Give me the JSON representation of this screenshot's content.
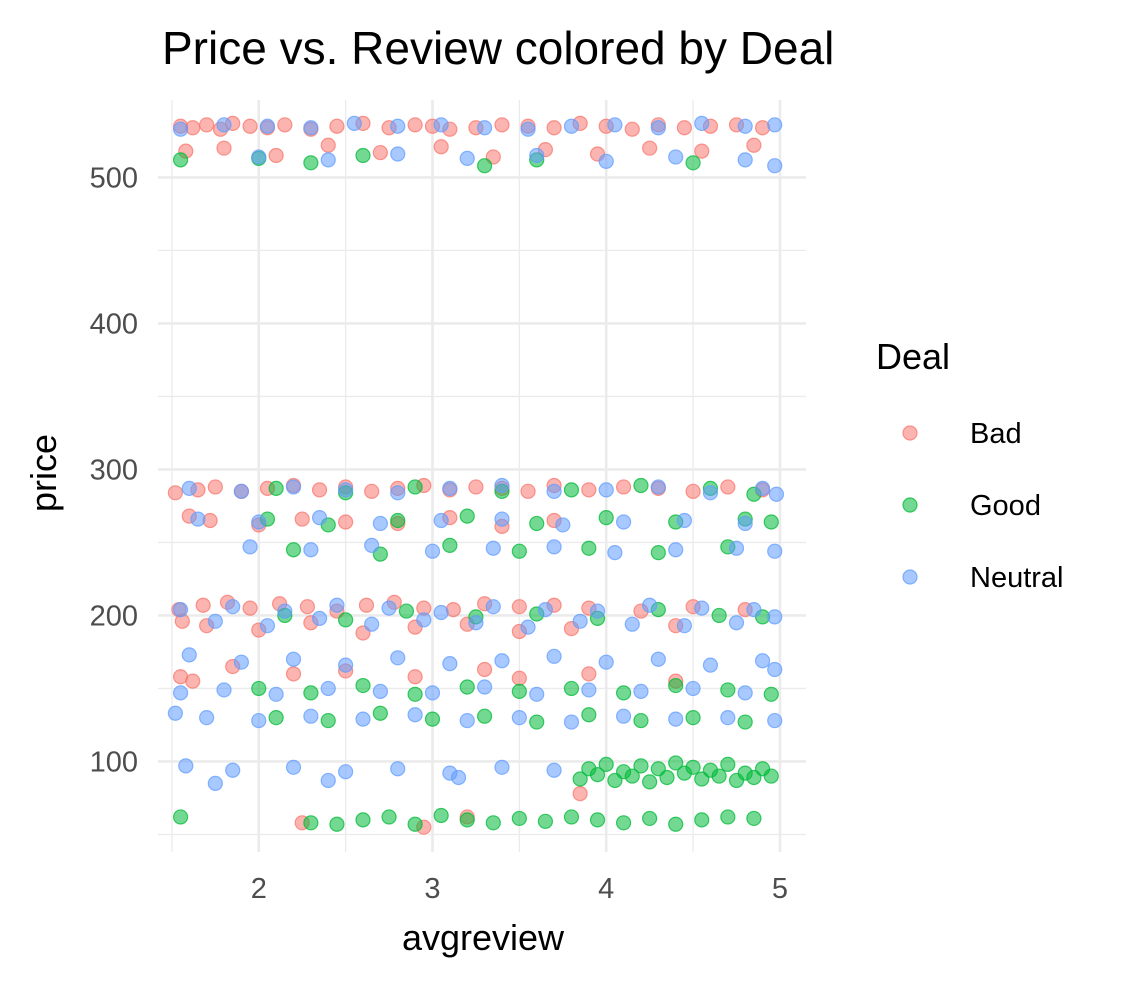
{
  "chart_data": {
    "type": "scatter",
    "title": "Price vs. Review colored by Deal",
    "xlabel": "avgreview",
    "ylabel": "price",
    "xlim": [
      1.42,
      5.15
    ],
    "ylim": [
      38,
      553
    ],
    "x_ticks": [
      2,
      3,
      4,
      5
    ],
    "y_ticks": [
      100,
      200,
      300,
      400,
      500
    ],
    "grid": true,
    "legend": {
      "title": "Deal",
      "position": "right"
    },
    "colors": {
      "Bad": "#F8766D",
      "Good": "#00BA38",
      "Neutral": "#619CFF"
    },
    "series": [
      {
        "name": "Bad",
        "color": "#F8766D",
        "x": [
          1.55,
          1.62,
          1.7,
          1.78,
          1.85,
          1.95,
          2.05,
          2.15,
          2.3,
          2.45,
          2.6,
          2.75,
          2.9,
          3.0,
          3.1,
          3.25,
          3.4,
          3.55,
          3.7,
          3.85,
          4.0,
          4.15,
          4.3,
          4.45,
          4.6,
          4.75,
          4.9,
          1.58,
          1.8,
          2.1,
          2.4,
          2.7,
          3.05,
          3.35,
          3.65,
          3.95,
          4.25,
          4.55,
          4.85,
          1.52,
          1.65,
          1.75,
          1.9,
          2.05,
          2.2,
          2.35,
          2.5,
          2.65,
          2.8,
          2.95,
          3.1,
          3.25,
          3.4,
          3.55,
          3.7,
          3.9,
          4.1,
          4.3,
          4.5,
          4.7,
          4.9,
          1.6,
          1.72,
          2.0,
          2.25,
          2.5,
          2.8,
          3.1,
          3.4,
          3.7,
          1.54,
          1.68,
          1.82,
          1.95,
          2.12,
          2.28,
          2.45,
          2.62,
          2.78,
          2.95,
          3.12,
          3.3,
          3.5,
          3.7,
          3.9,
          4.2,
          4.5,
          4.8,
          1.56,
          1.7,
          2.0,
          2.3,
          2.6,
          2.9,
          3.2,
          3.5,
          3.8,
          4.4,
          1.55,
          1.62,
          1.85,
          2.2,
          2.5,
          2.9,
          3.3,
          3.5,
          3.9,
          4.4,
          2.25,
          2.95,
          3.2,
          3.85
        ],
        "y": [
          535,
          534,
          536,
          533,
          537,
          535,
          534,
          536,
          533,
          535,
          537,
          534,
          536,
          535,
          533,
          534,
          536,
          535,
          534,
          537,
          535,
          533,
          536,
          534,
          535,
          536,
          534,
          518,
          520,
          515,
          522,
          517,
          521,
          514,
          519,
          516,
          520,
          518,
          522,
          284,
          286,
          288,
          285,
          287,
          289,
          286,
          288,
          285,
          287,
          289,
          286,
          288,
          287,
          285,
          289,
          286,
          288,
          287,
          285,
          288,
          286,
          268,
          265,
          262,
          266,
          264,
          263,
          267,
          261,
          265,
          204,
          207,
          209,
          205,
          208,
          206,
          203,
          207,
          209,
          205,
          204,
          208,
          206,
          207,
          205,
          203,
          206,
          204,
          196,
          193,
          190,
          195,
          188,
          192,
          194,
          189,
          191,
          193,
          158,
          155,
          165,
          160,
          162,
          158,
          163,
          157,
          160,
          155,
          58,
          55,
          62,
          78
        ]
      },
      {
        "name": "Good",
        "color": "#00BA38",
        "x": [
          1.55,
          2.0,
          2.3,
          2.6,
          3.3,
          3.6,
          4.5,
          2.1,
          2.5,
          2.9,
          3.4,
          3.8,
          4.2,
          4.6,
          4.85,
          2.05,
          2.4,
          2.8,
          3.2,
          3.6,
          4.0,
          4.4,
          4.8,
          4.95,
          2.2,
          2.7,
          3.1,
          3.5,
          3.9,
          4.3,
          4.7,
          2.15,
          2.5,
          2.85,
          3.25,
          3.6,
          3.95,
          4.3,
          4.65,
          4.9,
          2.0,
          2.3,
          2.6,
          2.9,
          3.2,
          3.5,
          3.8,
          4.1,
          4.4,
          4.7,
          4.95,
          2.1,
          2.4,
          2.7,
          3.0,
          3.3,
          3.6,
          3.9,
          4.2,
          4.5,
          4.8,
          1.55,
          2.3,
          2.45,
          2.6,
          2.75,
          2.9,
          3.05,
          3.2,
          3.35,
          3.5,
          3.65,
          3.8,
          3.95,
          4.1,
          4.25,
          4.4,
          4.55,
          4.7,
          4.85,
          3.9,
          4.0,
          4.1,
          4.2,
          4.3,
          4.4,
          4.5,
          4.6,
          4.7,
          4.8,
          4.9,
          4.95,
          3.85,
          3.95,
          4.05,
          4.15,
          4.25,
          4.35,
          4.45,
          4.55,
          4.65,
          4.75,
          4.85
        ],
        "y": [
          512,
          513,
          510,
          515,
          508,
          512,
          510,
          287,
          284,
          288,
          285,
          286,
          289,
          287,
          283,
          266,
          262,
          265,
          268,
          263,
          267,
          264,
          266,
          264,
          245,
          242,
          248,
          244,
          246,
          243,
          247,
          200,
          197,
          203,
          199,
          201,
          198,
          204,
          200,
          199,
          150,
          147,
          152,
          146,
          151,
          148,
          150,
          147,
          152,
          149,
          146,
          130,
          128,
          133,
          129,
          131,
          127,
          132,
          128,
          130,
          127,
          62,
          58,
          57,
          60,
          62,
          57,
          63,
          60,
          58,
          61,
          59,
          62,
          60,
          58,
          61,
          57,
          60,
          62,
          61,
          95,
          98,
          93,
          97,
          95,
          99,
          96,
          94,
          98,
          92,
          95,
          90,
          88,
          91,
          87,
          90,
          86,
          89,
          92,
          88,
          90,
          87,
          89
        ]
      },
      {
        "name": "Neutral",
        "color": "#619CFF",
        "x": [
          1.55,
          1.8,
          2.05,
          2.3,
          2.55,
          2.8,
          3.05,
          3.3,
          3.55,
          3.8,
          4.05,
          4.3,
          4.55,
          4.8,
          4.97,
          2.0,
          2.4,
          2.8,
          3.2,
          3.6,
          4.0,
          4.4,
          4.8,
          4.97,
          1.6,
          1.9,
          2.2,
          2.5,
          2.8,
          3.1,
          3.4,
          3.7,
          4.0,
          4.3,
          4.6,
          4.9,
          4.98,
          1.65,
          2.0,
          2.35,
          2.7,
          3.05,
          3.4,
          3.75,
          4.1,
          4.45,
          4.8,
          1.95,
          2.3,
          2.65,
          3.0,
          3.35,
          3.7,
          4.05,
          4.4,
          4.75,
          4.97,
          1.55,
          1.85,
          2.15,
          2.45,
          2.75,
          3.05,
          3.35,
          3.65,
          3.95,
          4.25,
          4.55,
          4.85,
          4.97,
          1.75,
          2.05,
          2.35,
          2.65,
          2.95,
          3.25,
          3.55,
          3.85,
          4.15,
          4.45,
          4.75,
          1.6,
          1.9,
          2.2,
          2.5,
          2.8,
          3.1,
          3.4,
          3.7,
          4.0,
          4.3,
          4.6,
          4.9,
          1.55,
          1.8,
          2.1,
          2.4,
          2.7,
          3.0,
          3.3,
          3.6,
          3.9,
          4.2,
          4.5,
          4.8,
          4.97,
          1.52,
          1.7,
          2.0,
          2.3,
          2.6,
          2.9,
          3.2,
          3.5,
          3.8,
          4.1,
          4.4,
          4.7,
          4.97,
          1.58,
          1.85,
          2.2,
          2.5,
          2.8,
          3.1,
          3.4,
          3.7,
          1.75,
          2.4,
          3.15
        ],
        "y": [
          533,
          536,
          535,
          534,
          537,
          535,
          536,
          534,
          533,
          535,
          536,
          534,
          537,
          535,
          536,
          514,
          512,
          516,
          513,
          515,
          511,
          514,
          512,
          508,
          287,
          285,
          288,
          286,
          284,
          287,
          289,
          285,
          286,
          288,
          284,
          287,
          283,
          266,
          264,
          267,
          263,
          265,
          266,
          262,
          264,
          265,
          263,
          247,
          245,
          248,
          244,
          246,
          247,
          243,
          245,
          246,
          244,
          204,
          206,
          203,
          207,
          205,
          202,
          206,
          204,
          203,
          207,
          205,
          204,
          199,
          196,
          193,
          198,
          194,
          197,
          195,
          192,
          196,
          194,
          193,
          195,
          173,
          168,
          170,
          166,
          171,
          167,
          169,
          172,
          168,
          170,
          166,
          169,
          147,
          149,
          146,
          150,
          148,
          147,
          151,
          146,
          149,
          148,
          150,
          147,
          163,
          133,
          130,
          128,
          131,
          129,
          132,
          128,
          130,
          127,
          131,
          129,
          130,
          128,
          97,
          94,
          96,
          93,
          95,
          92,
          96,
          94,
          85,
          87,
          89
        ]
      }
    ]
  }
}
